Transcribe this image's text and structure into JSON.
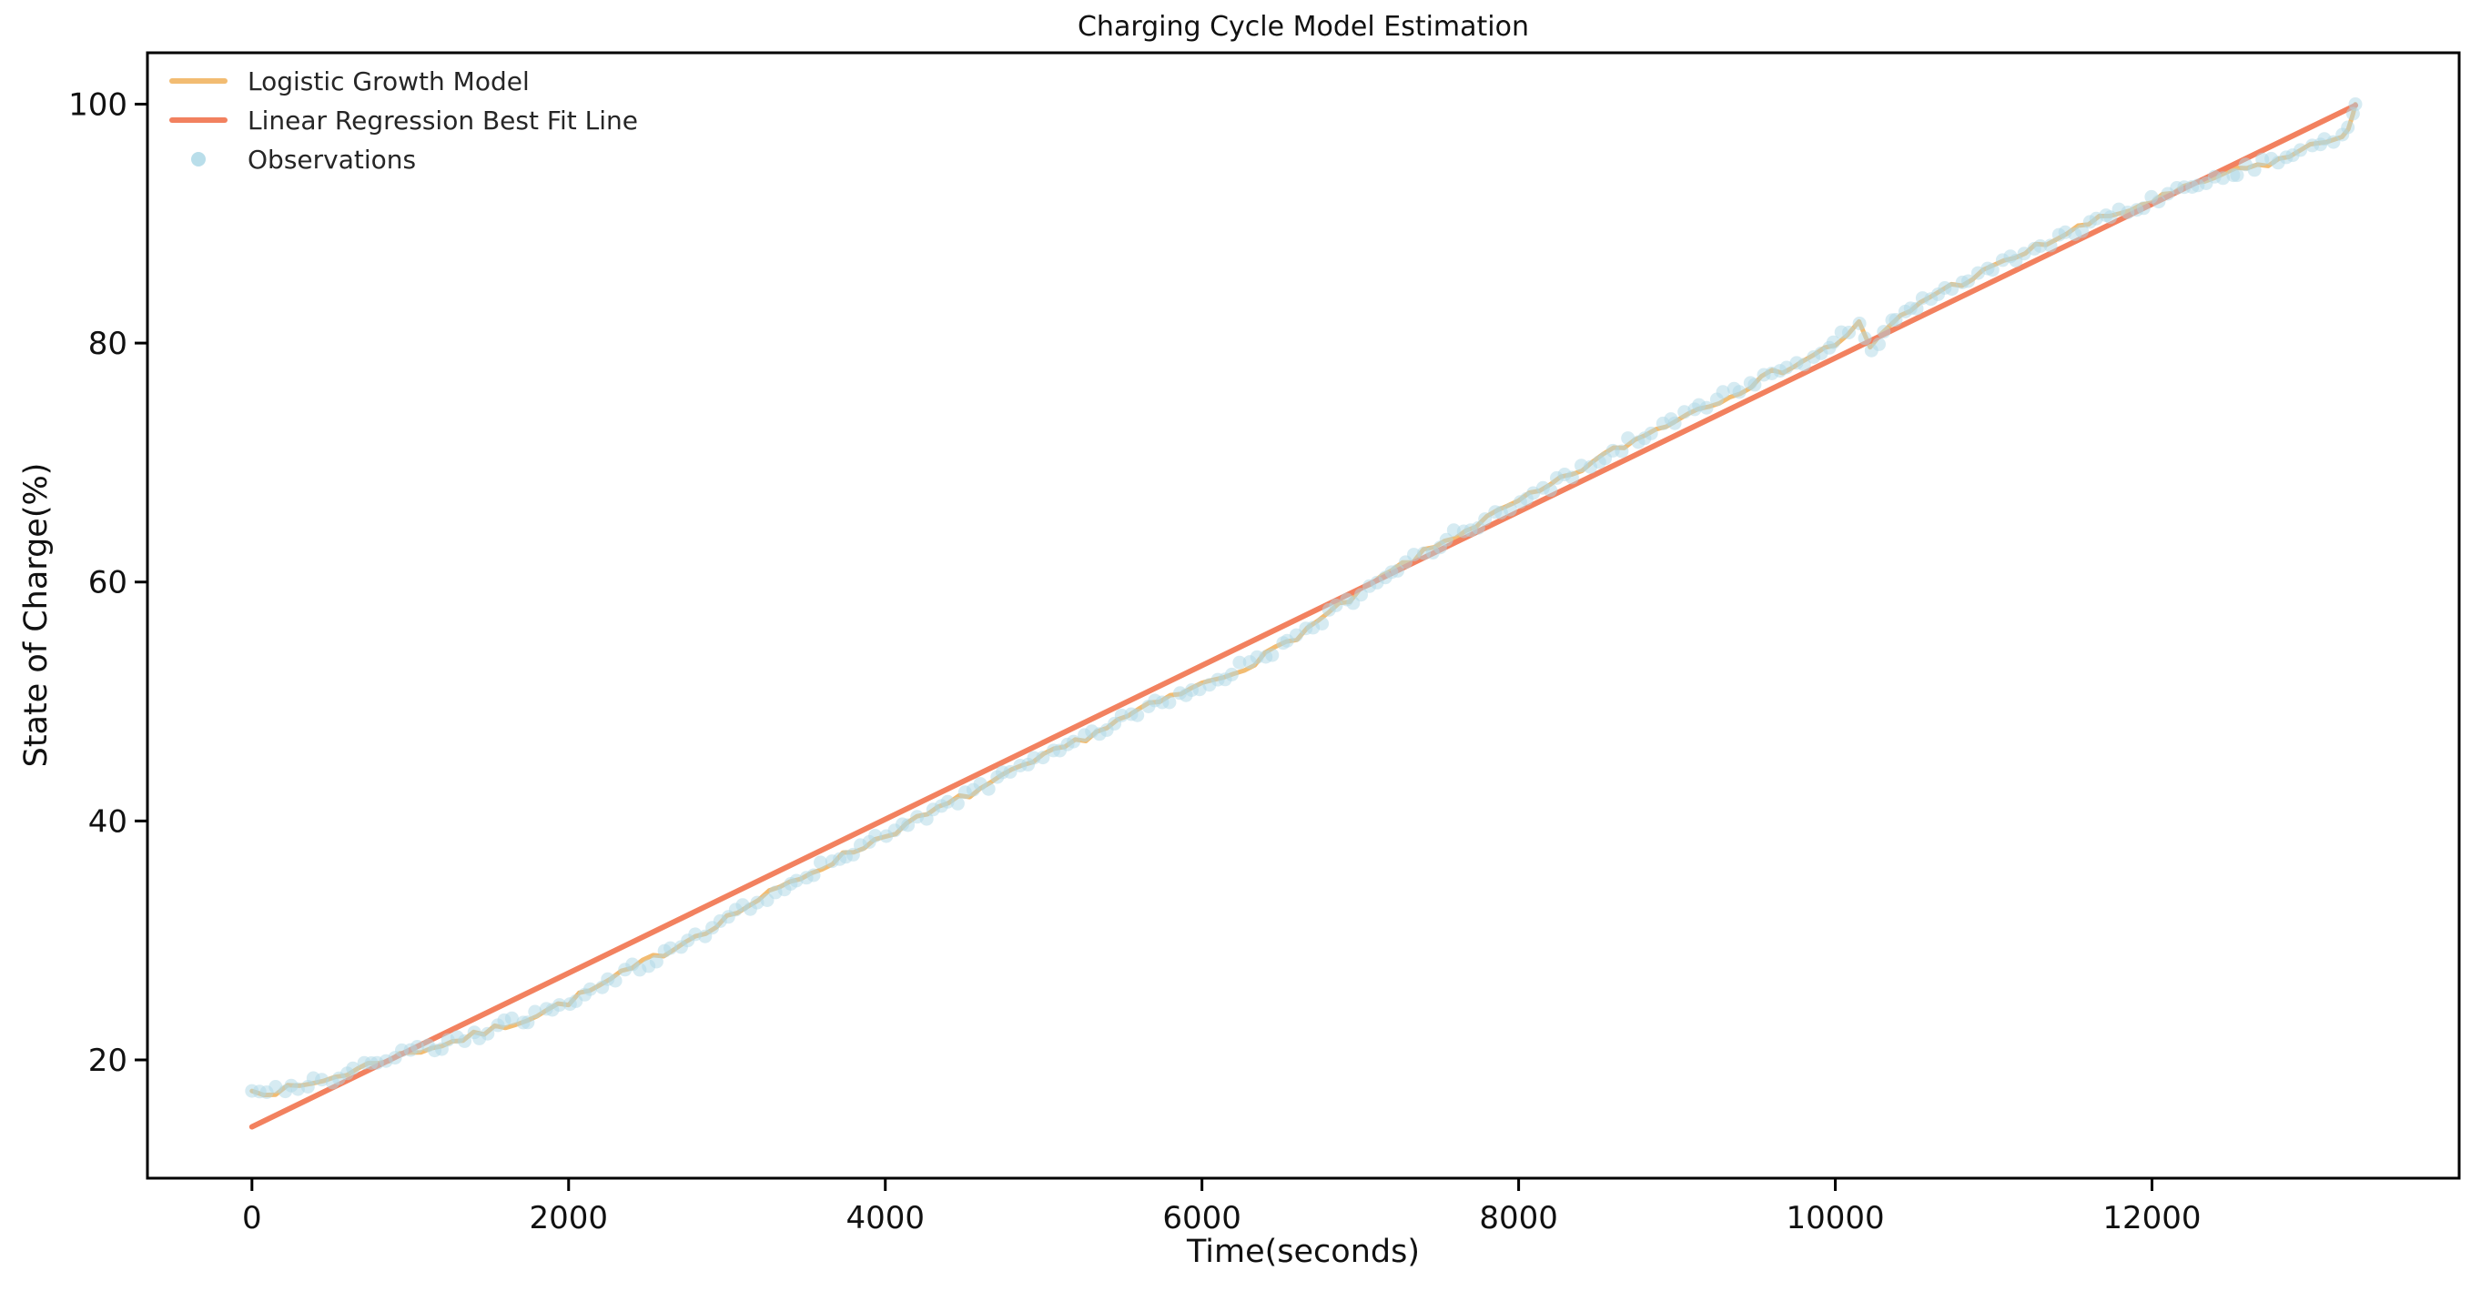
{
  "figure": {
    "title": "Charging Cycle Model Estimation"
  },
  "legend": {
    "position": "upper left",
    "items": [
      {
        "label": "Logistic Growth Model",
        "type": "line",
        "color": "#F2BC72"
      },
      {
        "label": "Linear Regression Best Fit Line",
        "type": "line",
        "color": "#F2815F"
      },
      {
        "label": "Observations",
        "type": "marker",
        "color": "#ADD8E6"
      }
    ]
  },
  "chart_data": {
    "type": "line",
    "title": "Charging Cycle Model Estimation",
    "xlabel": "Time(seconds)",
    "ylabel": "State of Charge(%)",
    "x_ticks": [
      0,
      2000,
      4000,
      6000,
      8000,
      10000,
      12000
    ],
    "y_ticks": [
      20,
      40,
      60,
      80,
      100
    ],
    "xlim": [
      -660,
      13940
    ],
    "ylim": [
      10.1,
      104.3
    ],
    "grid": false,
    "legend_position": "upper left",
    "trend_points": [
      [
        0,
        17.4
      ],
      [
        150,
        17.4
      ],
      [
        300,
        17.7
      ],
      [
        450,
        18.3
      ],
      [
        600,
        18.9
      ],
      [
        800,
        19.9
      ],
      [
        1000,
        20.6
      ],
      [
        1200,
        21.3
      ],
      [
        1400,
        22.0
      ],
      [
        1600,
        22.9
      ],
      [
        1800,
        23.8
      ],
      [
        2000,
        24.9
      ],
      [
        2200,
        26.2
      ],
      [
        2400,
        27.6
      ],
      [
        2600,
        29.0
      ],
      [
        2800,
        30.4
      ],
      [
        3000,
        31.9
      ],
      [
        3200,
        33.4
      ],
      [
        3400,
        34.8
      ],
      [
        3600,
        36.2
      ],
      [
        3800,
        37.5
      ],
      [
        4000,
        38.8
      ],
      [
        4200,
        40.1
      ],
      [
        4400,
        41.4
      ],
      [
        4600,
        42.7
      ],
      [
        4800,
        44.0
      ],
      [
        5000,
        45.3
      ],
      [
        5200,
        46.6
      ],
      [
        5400,
        47.9
      ],
      [
        5600,
        49.2
      ],
      [
        5800,
        50.3
      ],
      [
        6000,
        51.4
      ],
      [
        6200,
        52.5
      ],
      [
        6400,
        53.8
      ],
      [
        6600,
        55.5
      ],
      [
        6800,
        57.3
      ],
      [
        7000,
        59.1
      ],
      [
        7200,
        60.9
      ],
      [
        7400,
        62.4
      ],
      [
        7600,
        63.9
      ],
      [
        7800,
        65.3
      ],
      [
        8000,
        66.7
      ],
      [
        8200,
        68.0
      ],
      [
        8400,
        69.5
      ],
      [
        8600,
        71.0
      ],
      [
        8800,
        72.3
      ],
      [
        9000,
        73.7
      ],
      [
        9200,
        74.9
      ],
      [
        9400,
        76.1
      ],
      [
        9600,
        77.4
      ],
      [
        9800,
        78.6
      ],
      [
        10000,
        79.9
      ],
      [
        10150,
        81.6
      ],
      [
        10220,
        79.5
      ],
      [
        10350,
        81.5
      ],
      [
        10600,
        84.0
      ],
      [
        10800,
        85.1
      ],
      [
        11000,
        86.3
      ],
      [
        11200,
        87.6
      ],
      [
        11400,
        88.8
      ],
      [
        11600,
        90.0
      ],
      [
        11800,
        90.9
      ],
      [
        12000,
        91.9
      ],
      [
        12200,
        92.8
      ],
      [
        12400,
        93.9
      ],
      [
        12600,
        94.6
      ],
      [
        12800,
        95.3
      ],
      [
        13000,
        96.4
      ],
      [
        13100,
        96.9
      ],
      [
        13200,
        97.4
      ],
      [
        13240,
        98.2
      ],
      [
        13270,
        99.2
      ],
      [
        13285,
        100.0
      ]
    ],
    "series": [
      {
        "name": "Logistic Growth Model",
        "type": "line",
        "color": "#F2BC72",
        "line_width": 5,
        "points_ref": "trend_points",
        "description": "Wiggly model curve tracking the observations from 17.4% at t=0 to 100% at t=13285"
      },
      {
        "name": "Linear Regression Best Fit Line",
        "type": "line",
        "color": "#F2815F",
        "line_width": 6,
        "points": [
          [
            0,
            14.4
          ],
          [
            13285,
            99.9
          ]
        ]
      },
      {
        "name": "Observations",
        "type": "scatter",
        "color": "#ADD8E6",
        "marker_opacity": 0.5,
        "marker_radius": 7.5,
        "points_ref": "trend_points",
        "description": "~300 noisy SOC samples roughly every 45 s scattered tightly around the trend"
      }
    ]
  }
}
